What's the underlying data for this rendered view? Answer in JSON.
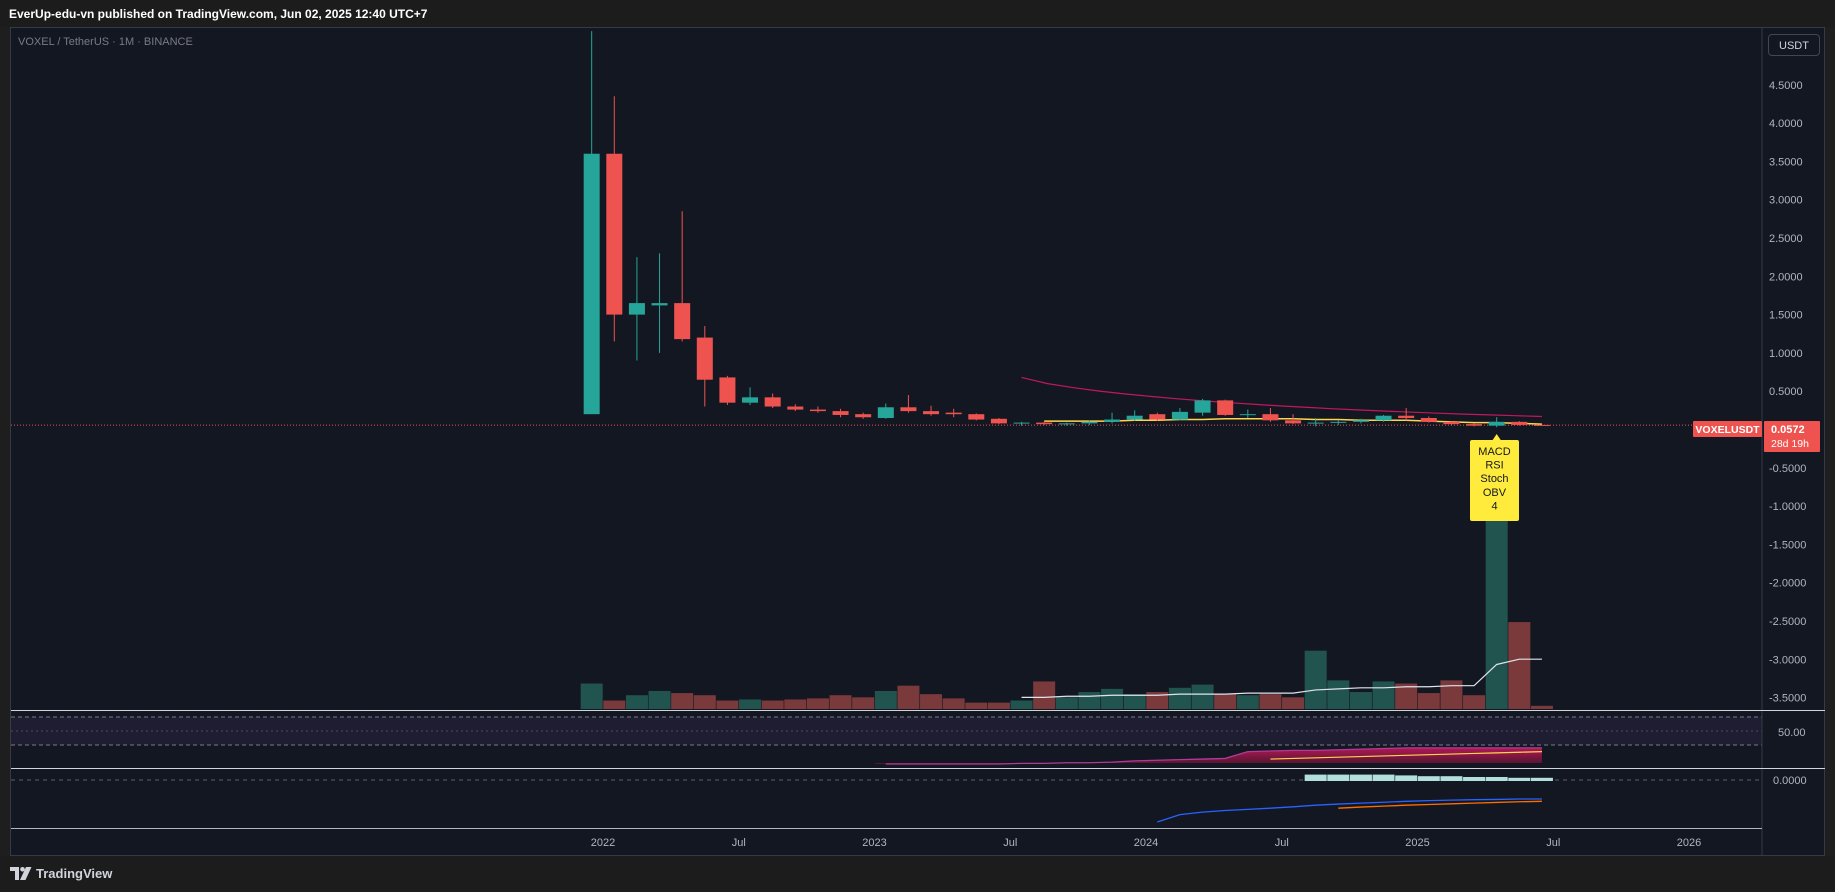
{
  "header": {
    "published": "EverUp-edu-vn published on TradingView.com, Jun 02, 2025 12:40 UTC+7"
  },
  "symbol": {
    "title": "VOXEL / TetherUS · 1M · BINANCE",
    "currency_button": "USDT"
  },
  "price_label": {
    "ticker": "VOXELUSDT",
    "price": "0.0572",
    "countdown": "28d 19h"
  },
  "annotation": {
    "lines": [
      "MACD",
      "RSI",
      "Stoch",
      "OBV",
      "4"
    ]
  },
  "brand": {
    "name": "TradingView"
  },
  "colors": {
    "up": "#26a69a",
    "down": "#ef5350",
    "background": "#131722",
    "volume_up": "#22544f",
    "volume_down": "#7a3a3c",
    "annotation": "#ffeb3b",
    "rsi_line": "#b03a9c",
    "ma_line": "#ffd54f",
    "obv_line": "#2962ff",
    "obv_signal": "#ff6d00"
  },
  "chart_data": {
    "type": "candlestick",
    "interval": "1M",
    "price_axis_ticks": [
      "4.5000",
      "4.0000",
      "3.5000",
      "3.0000",
      "2.5000",
      "2.0000",
      "1.5000",
      "1.0000",
      "0.5000",
      "-0.5000",
      "-1.0000",
      "-1.5000",
      "-2.0000",
      "-2.5000",
      "-3.0000",
      "-3.5000"
    ],
    "time_axis_ticks": [
      {
        "label": "2022",
        "date": "2022-01"
      },
      {
        "label": "Jul",
        "date": "2022-07"
      },
      {
        "label": "2023",
        "date": "2023-01"
      },
      {
        "label": "Jul",
        "date": "2023-07"
      },
      {
        "label": "2024",
        "date": "2024-01"
      },
      {
        "label": "Jul",
        "date": "2024-07"
      },
      {
        "label": "2025",
        "date": "2025-01"
      },
      {
        "label": "Jul",
        "date": "2025-07"
      },
      {
        "label": "2026",
        "date": "2026-01"
      }
    ],
    "candles": [
      {
        "date": "2021-12",
        "o": 0.2,
        "h": 5.2,
        "l": 0.2,
        "c": 3.6
      },
      {
        "date": "2022-01",
        "o": 3.6,
        "h": 4.35,
        "l": 1.15,
        "c": 1.5
      },
      {
        "date": "2022-02",
        "o": 1.5,
        "h": 2.25,
        "l": 0.9,
        "c": 1.65
      },
      {
        "date": "2022-03",
        "o": 1.62,
        "h": 2.3,
        "l": 1.0,
        "c": 1.65
      },
      {
        "date": "2022-04",
        "o": 1.65,
        "h": 2.85,
        "l": 1.15,
        "c": 1.18
      },
      {
        "date": "2022-05",
        "o": 1.2,
        "h": 1.35,
        "l": 0.3,
        "c": 0.65
      },
      {
        "date": "2022-06",
        "o": 0.68,
        "h": 0.7,
        "l": 0.32,
        "c": 0.35
      },
      {
        "date": "2022-07",
        "o": 0.35,
        "h": 0.55,
        "l": 0.32,
        "c": 0.42
      },
      {
        "date": "2022-08",
        "o": 0.42,
        "h": 0.47,
        "l": 0.28,
        "c": 0.3
      },
      {
        "date": "2022-09",
        "o": 0.3,
        "h": 0.33,
        "l": 0.24,
        "c": 0.26
      },
      {
        "date": "2022-10",
        "o": 0.26,
        "h": 0.3,
        "l": 0.22,
        "c": 0.24
      },
      {
        "date": "2022-11",
        "o": 0.24,
        "h": 0.27,
        "l": 0.16,
        "c": 0.19
      },
      {
        "date": "2022-12",
        "o": 0.2,
        "h": 0.22,
        "l": 0.14,
        "c": 0.16
      },
      {
        "date": "2023-01",
        "o": 0.15,
        "h": 0.34,
        "l": 0.14,
        "c": 0.29
      },
      {
        "date": "2023-02",
        "o": 0.29,
        "h": 0.45,
        "l": 0.22,
        "c": 0.24
      },
      {
        "date": "2023-03",
        "o": 0.24,
        "h": 0.31,
        "l": 0.18,
        "c": 0.2
      },
      {
        "date": "2023-04",
        "o": 0.22,
        "h": 0.27,
        "l": 0.16,
        "c": 0.2
      },
      {
        "date": "2023-05",
        "o": 0.2,
        "h": 0.21,
        "l": 0.12,
        "c": 0.13
      },
      {
        "date": "2023-06",
        "o": 0.14,
        "h": 0.15,
        "l": 0.07,
        "c": 0.08
      },
      {
        "date": "2023-07",
        "o": 0.08,
        "h": 0.1,
        "l": 0.05,
        "c": 0.09
      },
      {
        "date": "2023-08",
        "o": 0.09,
        "h": 0.1,
        "l": 0.06,
        "c": 0.07
      },
      {
        "date": "2023-09",
        "o": 0.07,
        "h": 0.09,
        "l": 0.05,
        "c": 0.08
      },
      {
        "date": "2023-10",
        "o": 0.08,
        "h": 0.12,
        "l": 0.06,
        "c": 0.1
      },
      {
        "date": "2023-11",
        "o": 0.1,
        "h": 0.22,
        "l": 0.08,
        "c": 0.13
      },
      {
        "date": "2023-12",
        "o": 0.13,
        "h": 0.25,
        "l": 0.11,
        "c": 0.18
      },
      {
        "date": "2024-01",
        "o": 0.2,
        "h": 0.22,
        "l": 0.11,
        "c": 0.13
      },
      {
        "date": "2024-02",
        "o": 0.13,
        "h": 0.28,
        "l": 0.12,
        "c": 0.23
      },
      {
        "date": "2024-03",
        "o": 0.22,
        "h": 0.4,
        "l": 0.18,
        "c": 0.38
      },
      {
        "date": "2024-04",
        "o": 0.38,
        "h": 0.39,
        "l": 0.18,
        "c": 0.19
      },
      {
        "date": "2024-05",
        "o": 0.19,
        "h": 0.26,
        "l": 0.15,
        "c": 0.2
      },
      {
        "date": "2024-06",
        "o": 0.2,
        "h": 0.28,
        "l": 0.1,
        "c": 0.12
      },
      {
        "date": "2024-07",
        "o": 0.12,
        "h": 0.2,
        "l": 0.07,
        "c": 0.08
      },
      {
        "date": "2024-08",
        "o": 0.08,
        "h": 0.15,
        "l": 0.04,
        "c": 0.09
      },
      {
        "date": "2024-09",
        "o": 0.09,
        "h": 0.12,
        "l": 0.06,
        "c": 0.1
      },
      {
        "date": "2024-10",
        "o": 0.1,
        "h": 0.14,
        "l": 0.08,
        "c": 0.12
      },
      {
        "date": "2024-11",
        "o": 0.12,
        "h": 0.19,
        "l": 0.1,
        "c": 0.18
      },
      {
        "date": "2024-12",
        "o": 0.18,
        "h": 0.28,
        "l": 0.12,
        "c": 0.15
      },
      {
        "date": "2025-01",
        "o": 0.15,
        "h": 0.17,
        "l": 0.09,
        "c": 0.1
      },
      {
        "date": "2025-02",
        "o": 0.1,
        "h": 0.11,
        "l": 0.06,
        "c": 0.07
      },
      {
        "date": "2025-03",
        "o": 0.07,
        "h": 0.08,
        "l": 0.04,
        "c": 0.05
      },
      {
        "date": "2025-04",
        "o": 0.05,
        "h": 0.16,
        "l": 0.03,
        "c": 0.1
      },
      {
        "date": "2025-05",
        "o": 0.1,
        "h": 0.11,
        "l": 0.05,
        "c": 0.06
      },
      {
        "date": "2025-06",
        "o": 0.06,
        "h": 0.065,
        "l": 0.055,
        "c": 0.0572
      }
    ],
    "volume": [
      0.24,
      0.08,
      0.13,
      0.17,
      0.15,
      0.13,
      0.08,
      0.09,
      0.08,
      0.09,
      0.1,
      0.13,
      0.11,
      0.17,
      0.22,
      0.14,
      0.1,
      0.06,
      0.06,
      0.08,
      0.26,
      0.11,
      0.16,
      0.19,
      0.14,
      0.16,
      0.2,
      0.23,
      0.14,
      0.13,
      0.14,
      0.11,
      0.55,
      0.27,
      0.16,
      0.26,
      0.24,
      0.15,
      0.27,
      0.13,
      2.1,
      0.82,
      0.03
    ],
    "volume_ma": [
      null,
      null,
      null,
      null,
      null,
      null,
      null,
      null,
      null,
      null,
      null,
      null,
      null,
      null,
      null,
      null,
      null,
      null,
      null,
      0.11,
      0.11,
      0.12,
      0.12,
      0.13,
      0.13,
      0.13,
      0.14,
      0.14,
      0.14,
      0.15,
      0.15,
      0.15,
      0.18,
      0.19,
      0.2,
      0.2,
      0.21,
      0.21,
      0.22,
      0.22,
      0.42,
      0.47,
      0.47
    ],
    "price_ma": [
      null,
      null,
      null,
      null,
      null,
      null,
      null,
      null,
      null,
      null,
      null,
      null,
      null,
      null,
      null,
      null,
      null,
      null,
      null,
      null,
      0.11,
      0.11,
      0.11,
      0.11,
      0.12,
      0.12,
      0.13,
      0.13,
      0.14,
      0.14,
      0.14,
      0.14,
      0.13,
      0.13,
      0.12,
      0.12,
      0.12,
      0.11,
      0.1,
      0.09,
      0.09,
      0.08,
      0.07
    ],
    "downtrend_line": {
      "from": {
        "date": "2023-07",
        "price": 0.68
      },
      "to": {
        "date": "2025-06",
        "price": 0.17
      }
    },
    "rsi_axis_tick": "50.00",
    "rsi": [
      null,
      null,
      null,
      null,
      null,
      null,
      null,
      null,
      null,
      null,
      null,
      null,
      null,
      12,
      12,
      12,
      12,
      12,
      12,
      13,
      13,
      14,
      14,
      15,
      17,
      18,
      19,
      20,
      21,
      32,
      33,
      34,
      34,
      35,
      36,
      37,
      38,
      38,
      38,
      38,
      38,
      38,
      38
    ],
    "rsi_ma": [
      null,
      null,
      null,
      null,
      null,
      null,
      null,
      null,
      null,
      null,
      null,
      null,
      null,
      null,
      null,
      null,
      null,
      null,
      null,
      null,
      null,
      null,
      null,
      null,
      null,
      null,
      null,
      null,
      null,
      null,
      20,
      21,
      22,
      23,
      24,
      25,
      26,
      27,
      28,
      29,
      30,
      31,
      32
    ],
    "macd_axis_tick": "0.0000",
    "macd_histogram": [
      null,
      null,
      null,
      null,
      null,
      null,
      null,
      null,
      null,
      null,
      null,
      null,
      null,
      null,
      null,
      null,
      null,
      null,
      null,
      null,
      null,
      null,
      null,
      null,
      null,
      null,
      null,
      null,
      null,
      null,
      null,
      null,
      0.004,
      0.004,
      0.004,
      0.004,
      0.0035,
      0.003,
      0.003,
      0.0025,
      0.0025,
      0.002,
      0.002
    ],
    "obv": [
      null,
      null,
      null,
      null,
      null,
      null,
      null,
      null,
      null,
      null,
      null,
      null,
      null,
      null,
      null,
      null,
      null,
      null,
      null,
      null,
      null,
      null,
      null,
      null,
      null,
      0.0,
      0.32,
      0.43,
      0.5,
      0.55,
      0.6,
      0.66,
      0.73,
      0.78,
      0.82,
      0.86,
      0.9,
      0.93,
      0.95,
      0.97,
      0.98,
      1.0,
      1.0
    ],
    "obv_signal": [
      null,
      null,
      null,
      null,
      null,
      null,
      null,
      null,
      null,
      null,
      null,
      null,
      null,
      null,
      null,
      null,
      null,
      null,
      null,
      null,
      null,
      null,
      null,
      null,
      null,
      null,
      null,
      null,
      null,
      null,
      null,
      null,
      null,
      0.6,
      0.65,
      0.69,
      0.73,
      0.76,
      0.79,
      0.82,
      0.85,
      0.88,
      0.9
    ]
  }
}
